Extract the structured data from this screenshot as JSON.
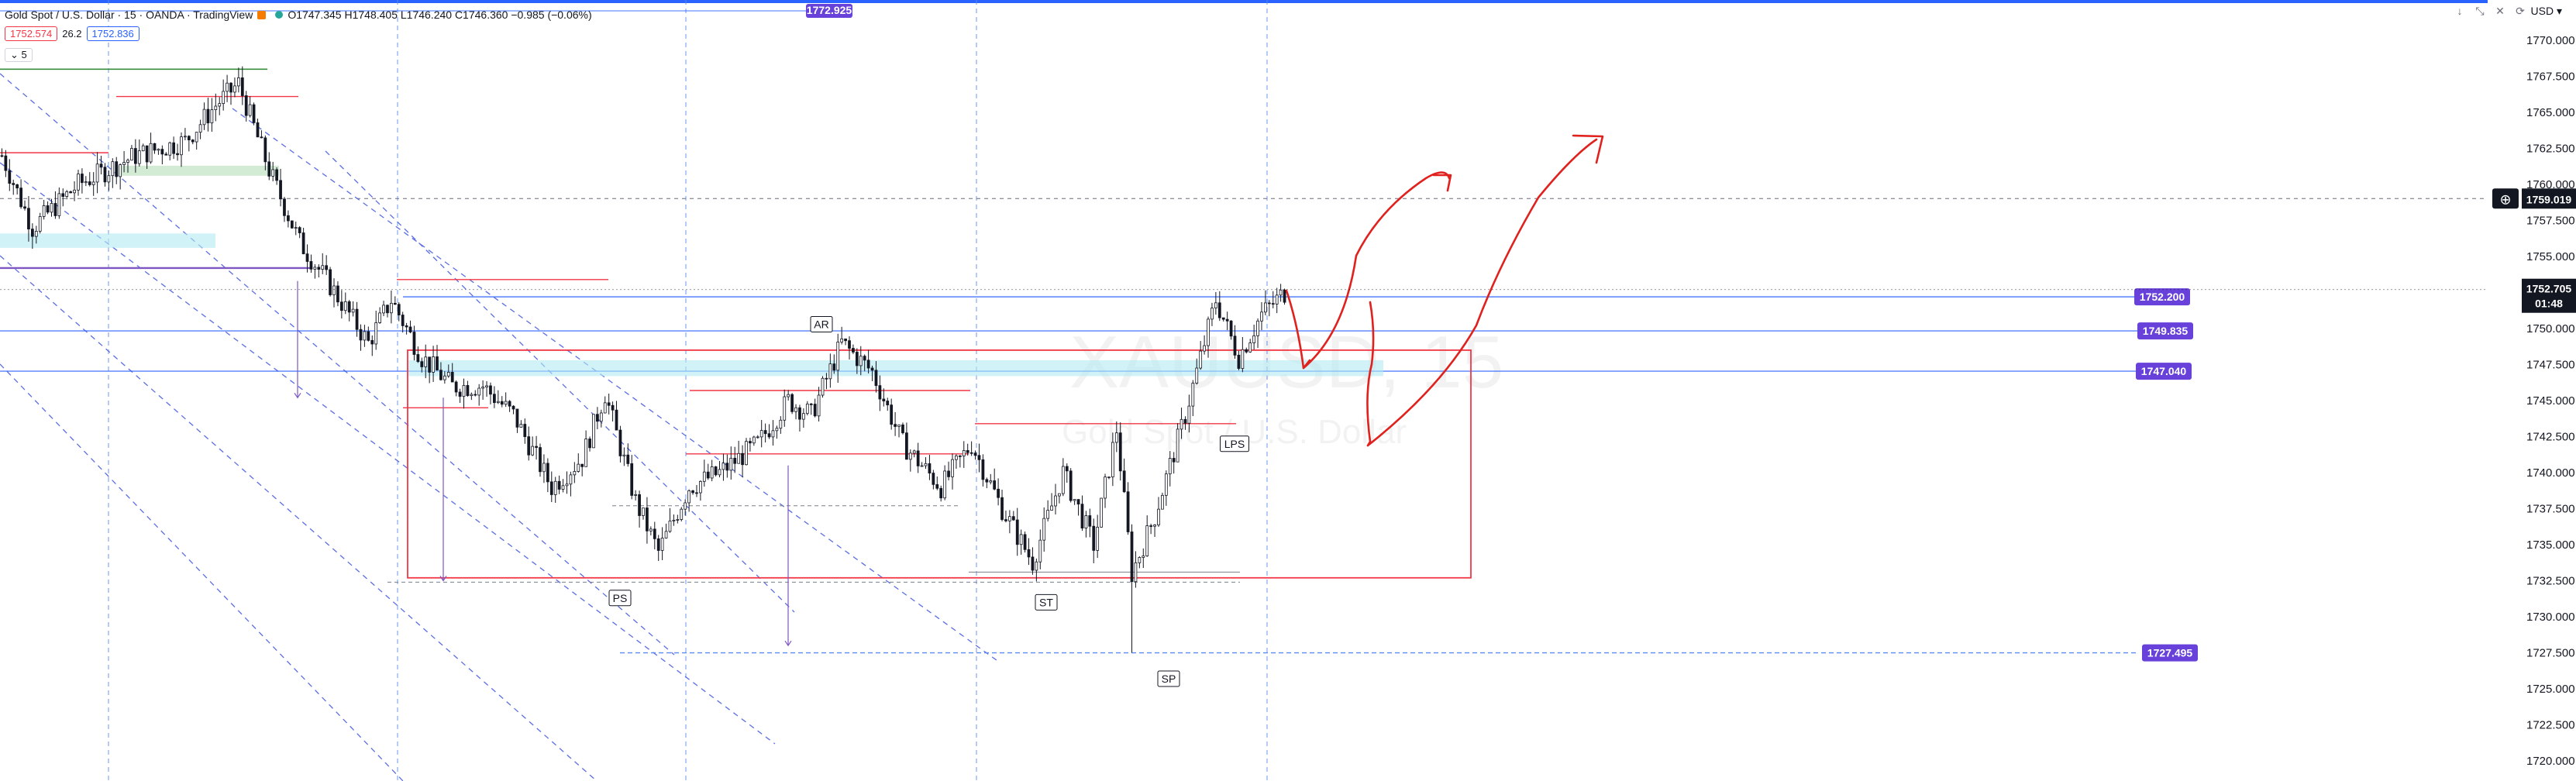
{
  "header": {
    "symbol_title": "Gold Spot / U.S. Dollar · 15 · OANDA · TradingView",
    "ohlc": "O1747.345  H1748.405  L1746.240  C1746.360  −0.985 (−0.06%)",
    "sell_price": "1752.574",
    "spread": "26.2",
    "buy_price": "1752.836",
    "collapse_label": "5",
    "currency": "USD",
    "legend_orange": "#f57c00",
    "legend_teal": "#26a69a",
    "controls": [
      "↓",
      "⤡",
      "✕",
      "⟳"
    ]
  },
  "watermark": {
    "symbol": "XAUUSD, 15",
    "description": "Gold Spot / U.S. Dollar"
  },
  "colors": {
    "candle": "#131722",
    "axis_tag": "#6741d9",
    "current_price_bg": "#131722",
    "red": "#f23645",
    "blue_line": "#2962ff",
    "dashed_blue": "#5b8def",
    "purple": "#7e57c2",
    "green": "#388e3c"
  },
  "chart_data": {
    "type": "candlestick",
    "timeframe": "15",
    "ylim": [
      1718.6,
      1772.8
    ],
    "y_ticks": [
      "1770.000",
      "1767.500",
      "1765.000",
      "1762.500",
      "1760.000",
      "1757.500",
      "1755.000",
      "1752.500",
      "1750.000",
      "1747.500",
      "1745.000",
      "1742.500",
      "1740.000",
      "1737.500",
      "1735.000",
      "1732.500",
      "1730.000",
      "1727.500",
      "1725.000",
      "1722.500",
      "1720.000"
    ],
    "current_price": "1752.705",
    "countdown": "01:48",
    "crosshair_price": "1759.019",
    "top_tag": "1772.925",
    "price_tags": [
      {
        "price": 1752.2,
        "label": "1752.200"
      },
      {
        "price": 1749.835,
        "label": "1749.835"
      },
      {
        "price": 1747.04,
        "label": "1747.040"
      },
      {
        "price": 1727.495,
        "label": "1727.495"
      }
    ],
    "annotations": [
      {
        "label": "AR",
        "price": 1750.3
      },
      {
        "label": "PS",
        "price": 1731.3
      },
      {
        "label": "ST",
        "price": 1731.0
      },
      {
        "label": "LPS",
        "price": 1742.0
      },
      {
        "label": "SP",
        "price": 1725.7
      }
    ],
    "anchors": [
      [
        0,
        1762
      ],
      [
        8,
        1757
      ],
      [
        20,
        1760
      ],
      [
        35,
        1762
      ],
      [
        48,
        1763
      ],
      [
        56,
        1765.5
      ],
      [
        62,
        1767
      ],
      [
        70,
        1761
      ],
      [
        78,
        1756
      ],
      [
        86,
        1753
      ],
      [
        96,
        1749
      ],
      [
        102,
        1752
      ],
      [
        110,
        1748
      ],
      [
        118,
        1746
      ],
      [
        126,
        1746
      ],
      [
        134,
        1744
      ],
      [
        144,
        1739
      ],
      [
        152,
        1741
      ],
      [
        158,
        1745.5
      ],
      [
        166,
        1738
      ],
      [
        172,
        1734.5
      ],
      [
        180,
        1739
      ],
      [
        188,
        1740
      ],
      [
        198,
        1742
      ],
      [
        206,
        1745
      ],
      [
        212,
        1744
      ],
      [
        220,
        1749
      ],
      [
        228,
        1747
      ],
      [
        236,
        1742
      ],
      [
        246,
        1739
      ],
      [
        254,
        1742
      ],
      [
        262,
        1737.5
      ],
      [
        270,
        1733.8
      ],
      [
        278,
        1740
      ],
      [
        286,
        1735
      ],
      [
        292,
        1743
      ],
      [
        296,
        1733
      ],
      [
        302,
        1737
      ],
      [
        310,
        1744
      ],
      [
        318,
        1752
      ],
      [
        324,
        1748
      ],
      [
        330,
        1751
      ],
      [
        336,
        1752.5
      ]
    ],
    "candle_count": 337
  }
}
